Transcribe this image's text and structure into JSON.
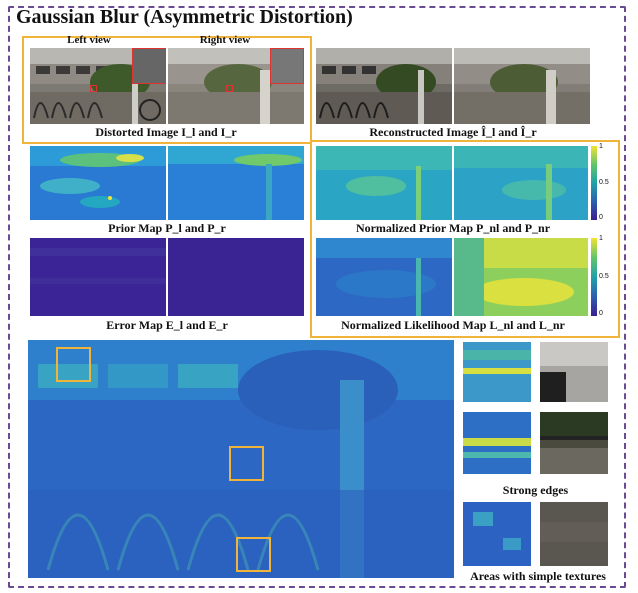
{
  "title": "Gaussian Blur (Asymmetric Distortion)",
  "views": {
    "left": "Left view",
    "right": "Right view"
  },
  "captions": {
    "distorted": "Distorted Image I_l and I_r",
    "reconstructed": "Reconstructed Image Î_l and Î_r",
    "prior": "Prior Map P_l and P_r",
    "normalized_prior": "Normalized Prior Map P_nl and P_nr",
    "error": "Error Map E_l and E_r",
    "normalized_likelihood": "Normalized Likelihood Map L_nl and L_nr",
    "strong_edges": "Strong edges",
    "simple_textures": "Areas with simple textures"
  },
  "colorbar_ticks": {
    "top": [
      "1",
      "0.5",
      "0"
    ],
    "bottom": [
      "1",
      "0.5",
      "0"
    ]
  },
  "colors": {
    "frame": "#6b4a94",
    "highlight": "#f0b43a",
    "inset": "#d33333"
  }
}
